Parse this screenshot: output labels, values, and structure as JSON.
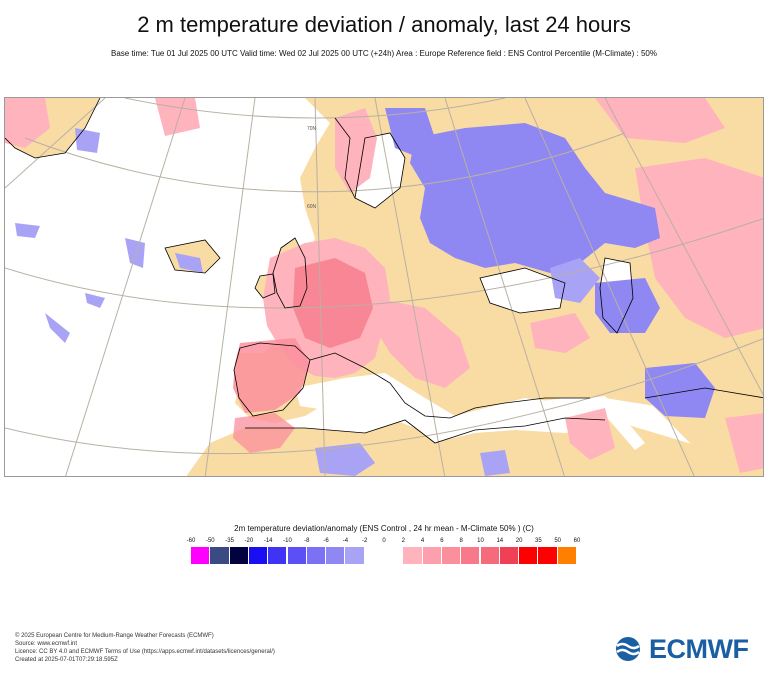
{
  "title": "2 m temperature deviation / anomaly, last 24 hours",
  "subtitle": "Base time: Tue 01 Jul 2025 00 UTC Valid time: Wed 02 Jul 2025 00 UTC (+24h) Area : Europe Reference field : ENS Control Percentile (M-Climate) : 50%",
  "map": {
    "latitude_labels": [
      "70N",
      "60N"
    ],
    "colors": {
      "land": "#f9dca4",
      "sea": "#ffffff",
      "warm_light": "#ffb3bd",
      "warm_mid": "#fb8f9c",
      "warm_strong": "#f56b7c",
      "cold_light": "#a9a3f6",
      "cold_mid": "#8f88f2",
      "coast": "#000000",
      "graticule": "#b9b0a4"
    }
  },
  "legend": {
    "title": "2m temperature deviation/anomaly (ENS Control , 24 hr mean - M-Climate 50% ) (C)",
    "tick_labels": [
      "-60",
      "-50",
      "-35",
      "-20",
      "-14",
      "-10",
      "-8",
      "-6",
      "-4",
      "-2",
      "0",
      "2",
      "4",
      "6",
      "8",
      "10",
      "14",
      "20",
      "35",
      "50",
      "60"
    ],
    "swatch_colors": [
      "#ff00ff",
      "#3a4a82",
      "#020240",
      "#1a0ff0",
      "#3f33f5",
      "#5a50f5",
      "#7a71f5",
      "#8f88f2",
      "#a9a3f6",
      "#ffffff",
      "#ffffff",
      "#ffb3bd",
      "#fd9fac",
      "#fb8f9c",
      "#f87a8a",
      "#f56b7c",
      "#f04055",
      "#ff0000",
      "#ff0000",
      "#ff8000"
    ]
  },
  "footer": {
    "line1": "© 2025 European Centre for Medium-Range Weather Forecasts (ECMWF)",
    "line2": "Source: www.ecmwf.int",
    "line3": "Licence: CC BY 4.0 and ECMWF Terms of Use (https://apps.ecmwf.int/datasets/licences/general/)",
    "line4": "Created at 2025-07-01T07:29:18.595Z"
  },
  "logo": {
    "text": "ECMWF"
  }
}
